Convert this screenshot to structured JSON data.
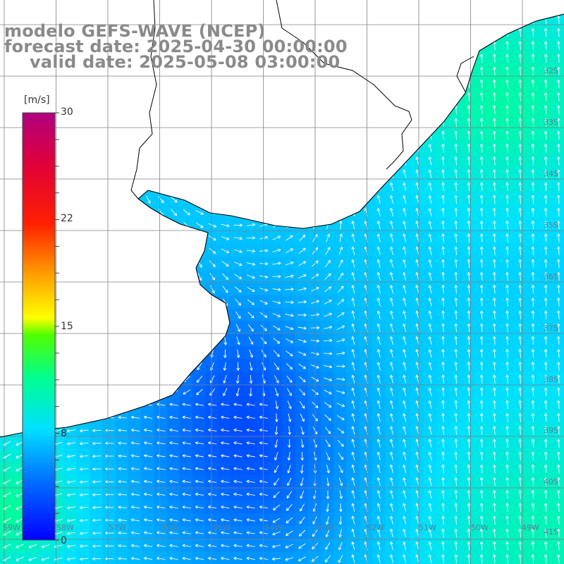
{
  "header": {
    "line1": "modelo GEFS-WAVE (NCEP)",
    "line2": "forecast date: 2025-04-30 00:00:00",
    "line3": "valid date: 2025-05-08 03:00:00"
  },
  "colorbar": {
    "unit": "[m/s]",
    "ticks": [
      "30",
      "22",
      "15",
      "8",
      "0"
    ],
    "tick_values": [
      30,
      22,
      15,
      8,
      0
    ],
    "range": [
      0,
      30
    ],
    "colors": [
      "#0000ff",
      "#0090ff",
      "#00e8ff",
      "#00ff90",
      "#40ff00",
      "#c8ff00",
      "#ffff00",
      "#ffa000",
      "#ff3000",
      "#e0003a",
      "#b00080"
    ]
  },
  "map": {
    "lat_labels": [
      "32S",
      "33S",
      "34S",
      "35S",
      "36S",
      "37S",
      "38S",
      "39S",
      "40S",
      "41S"
    ],
    "lon_labels": [
      "59W",
      "58W",
      "57W",
      "56W",
      "55W",
      "54W",
      "53W",
      "52W",
      "51W",
      "50W",
      "49W"
    ],
    "land_color": "#ffffff",
    "grid_color": "#808080",
    "arrow_color": "#ffffff"
  }
}
